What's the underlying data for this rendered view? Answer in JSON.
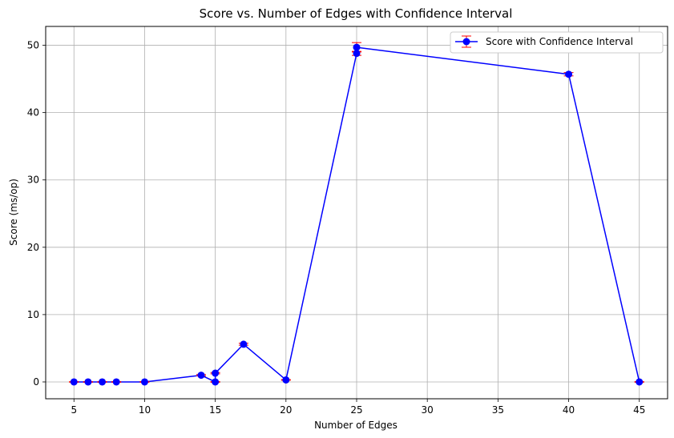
{
  "chart_data": {
    "type": "line",
    "title": "Score vs. Number of Edges with Confidence Interval",
    "xlabel": "Number of Edges",
    "ylabel": "Score (ms/op)",
    "xlim": [
      3.0,
      47.0
    ],
    "ylim": [
      -2.5,
      52.8
    ],
    "xticks": [
      5,
      10,
      15,
      20,
      25,
      30,
      35,
      40,
      45
    ],
    "yticks": [
      0,
      10,
      20,
      30,
      40,
      50
    ],
    "grid": true,
    "legend_position": "top-right",
    "series": [
      {
        "name": "Score with Confidence Interval",
        "color": "#0000ff",
        "errorbar_color": "#ff0000",
        "points": [
          {
            "x": 5,
            "y": 0.0,
            "err": 0.05
          },
          {
            "x": 6,
            "y": 0.0,
            "err": 0.05
          },
          {
            "x": 7,
            "y": 0.0,
            "err": 0.05
          },
          {
            "x": 8,
            "y": 0.0,
            "err": 0.05
          },
          {
            "x": 10,
            "y": 0.0,
            "err": 0.05
          },
          {
            "x": 14,
            "y": 1.0,
            "err": 0.1
          },
          {
            "x": 15,
            "y": 0.0,
            "err": 0.05
          },
          {
            "x": 15,
            "y": 1.3,
            "err": 0.1
          },
          {
            "x": 17,
            "y": 5.6,
            "err": 0.15
          },
          {
            "x": 20,
            "y": 0.3,
            "err": 0.05
          },
          {
            "x": 25,
            "y": 48.8,
            "err": 0.3
          },
          {
            "x": 25,
            "y": 49.7,
            "err": 0.7
          },
          {
            "x": 40,
            "y": 45.7,
            "err": 0.25
          },
          {
            "x": 45,
            "y": 0.0,
            "err": 0.05
          }
        ]
      }
    ]
  }
}
